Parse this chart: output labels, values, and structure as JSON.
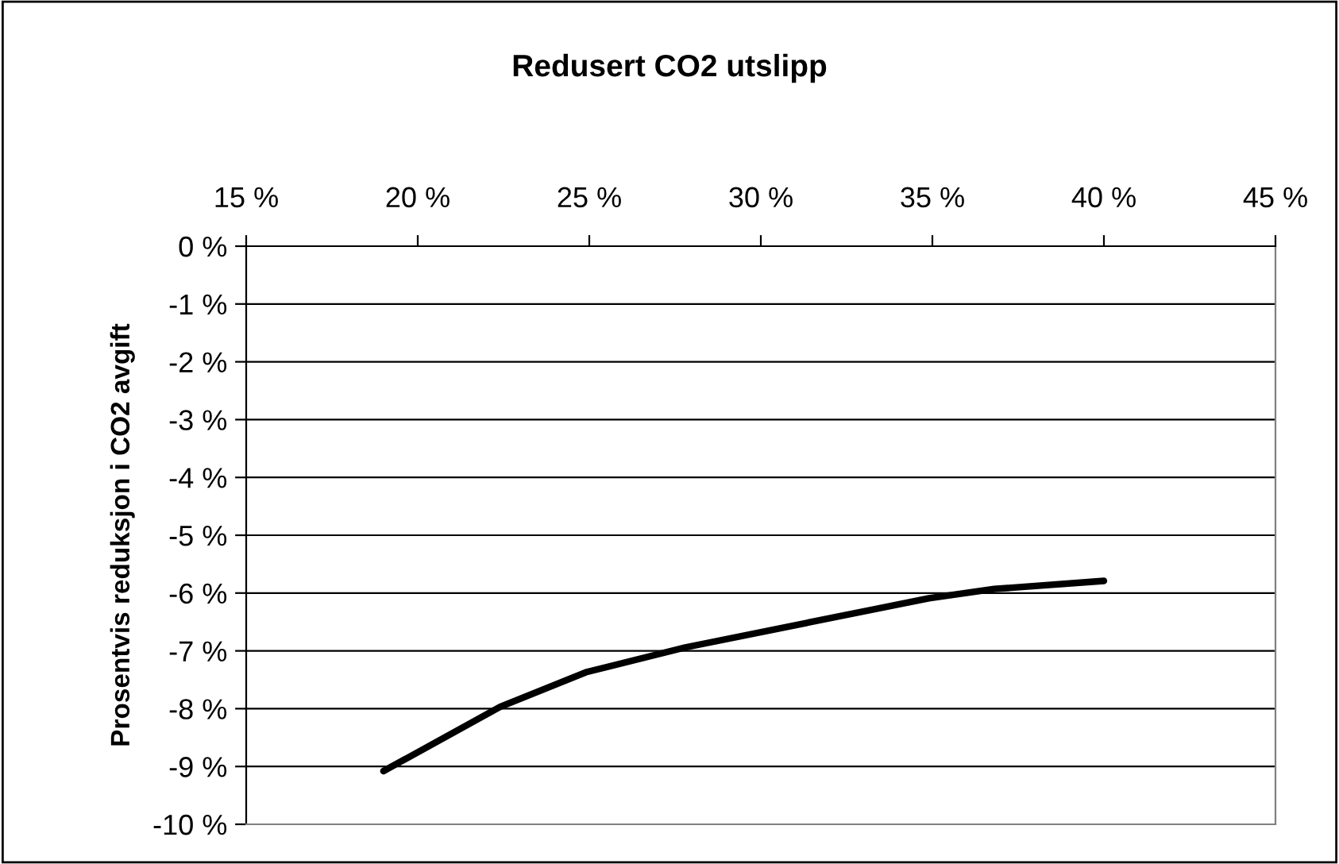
{
  "chart_data": {
    "type": "line",
    "title": "Redusert CO2 utslipp",
    "ylabel": "Prosentvis reduksjon i CO2 avgift",
    "x": [
      19.0,
      22.4,
      24.9,
      27.8,
      34.9,
      36.8,
      40.0
    ],
    "series": [
      {
        "color": "#000000",
        "values": [
          -9.08,
          -7.97,
          -7.37,
          -6.94,
          -6.09,
          -5.93,
          -5.79
        ]
      }
    ],
    "xlim": [
      15,
      45
    ],
    "xticks": [
      {
        "value": 15,
        "label": "15 %"
      },
      {
        "value": 20,
        "label": "20 %"
      },
      {
        "value": 25,
        "label": "25 %"
      },
      {
        "value": 30,
        "label": "30 %"
      },
      {
        "value": 35,
        "label": "35 %"
      },
      {
        "value": 40,
        "label": "40 %"
      },
      {
        "value": 45,
        "label": "45 %"
      }
    ],
    "ylim": [
      -10,
      0
    ],
    "yticks": [
      {
        "value": 0,
        "label": "0 %"
      },
      {
        "value": -1,
        "label": "-1 %"
      },
      {
        "value": -2,
        "label": "-2 %"
      },
      {
        "value": -3,
        "label": "-3 %"
      },
      {
        "value": -4,
        "label": "-4 %"
      },
      {
        "value": -5,
        "label": "-5 %"
      },
      {
        "value": -6,
        "label": "-6 %"
      },
      {
        "value": -7,
        "label": "-7 %"
      },
      {
        "value": -8,
        "label": "-8 %"
      },
      {
        "value": -9,
        "label": "-9 %"
      },
      {
        "value": -10,
        "label": "-10 %"
      }
    ],
    "grid": "y",
    "marker": "none",
    "line_style": "solid"
  }
}
